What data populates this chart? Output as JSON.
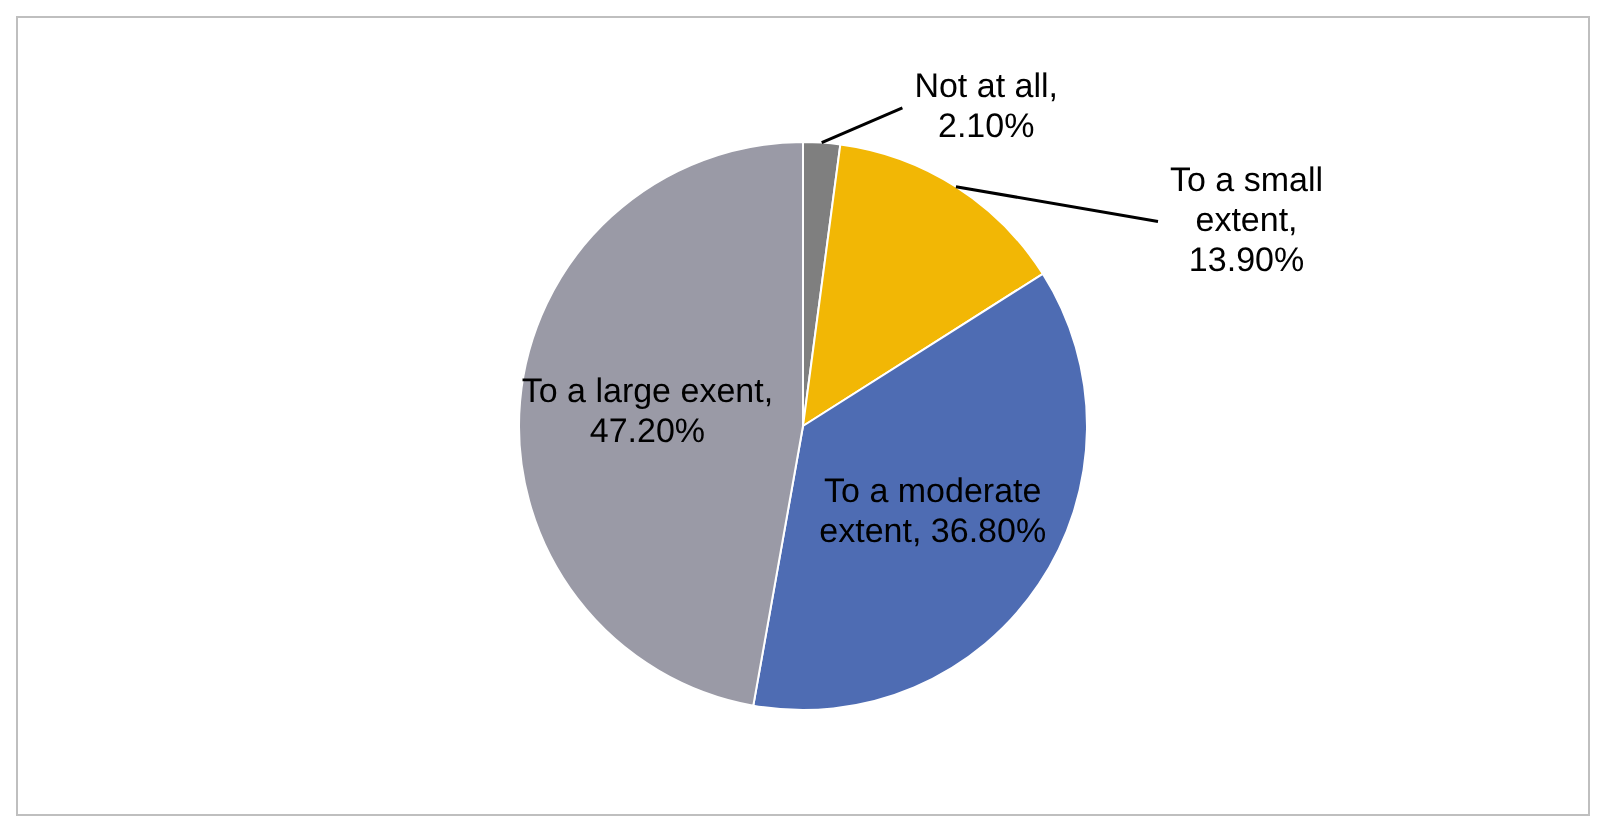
{
  "chart_data": {
    "type": "pie",
    "categories": [
      "Not at all",
      "To a small extent",
      "To a moderate extent",
      "To a large exent"
    ],
    "values": [
      2.1,
      13.9,
      36.8,
      47.2
    ],
    "value_labels": [
      ", 2.10%",
      ", 13.90%",
      ", 36.80%",
      ", 47.20%"
    ],
    "colors": [
      "#7f7f7f",
      "#f2b705",
      "#4e6cb3",
      "#9a9aa6"
    ]
  }
}
